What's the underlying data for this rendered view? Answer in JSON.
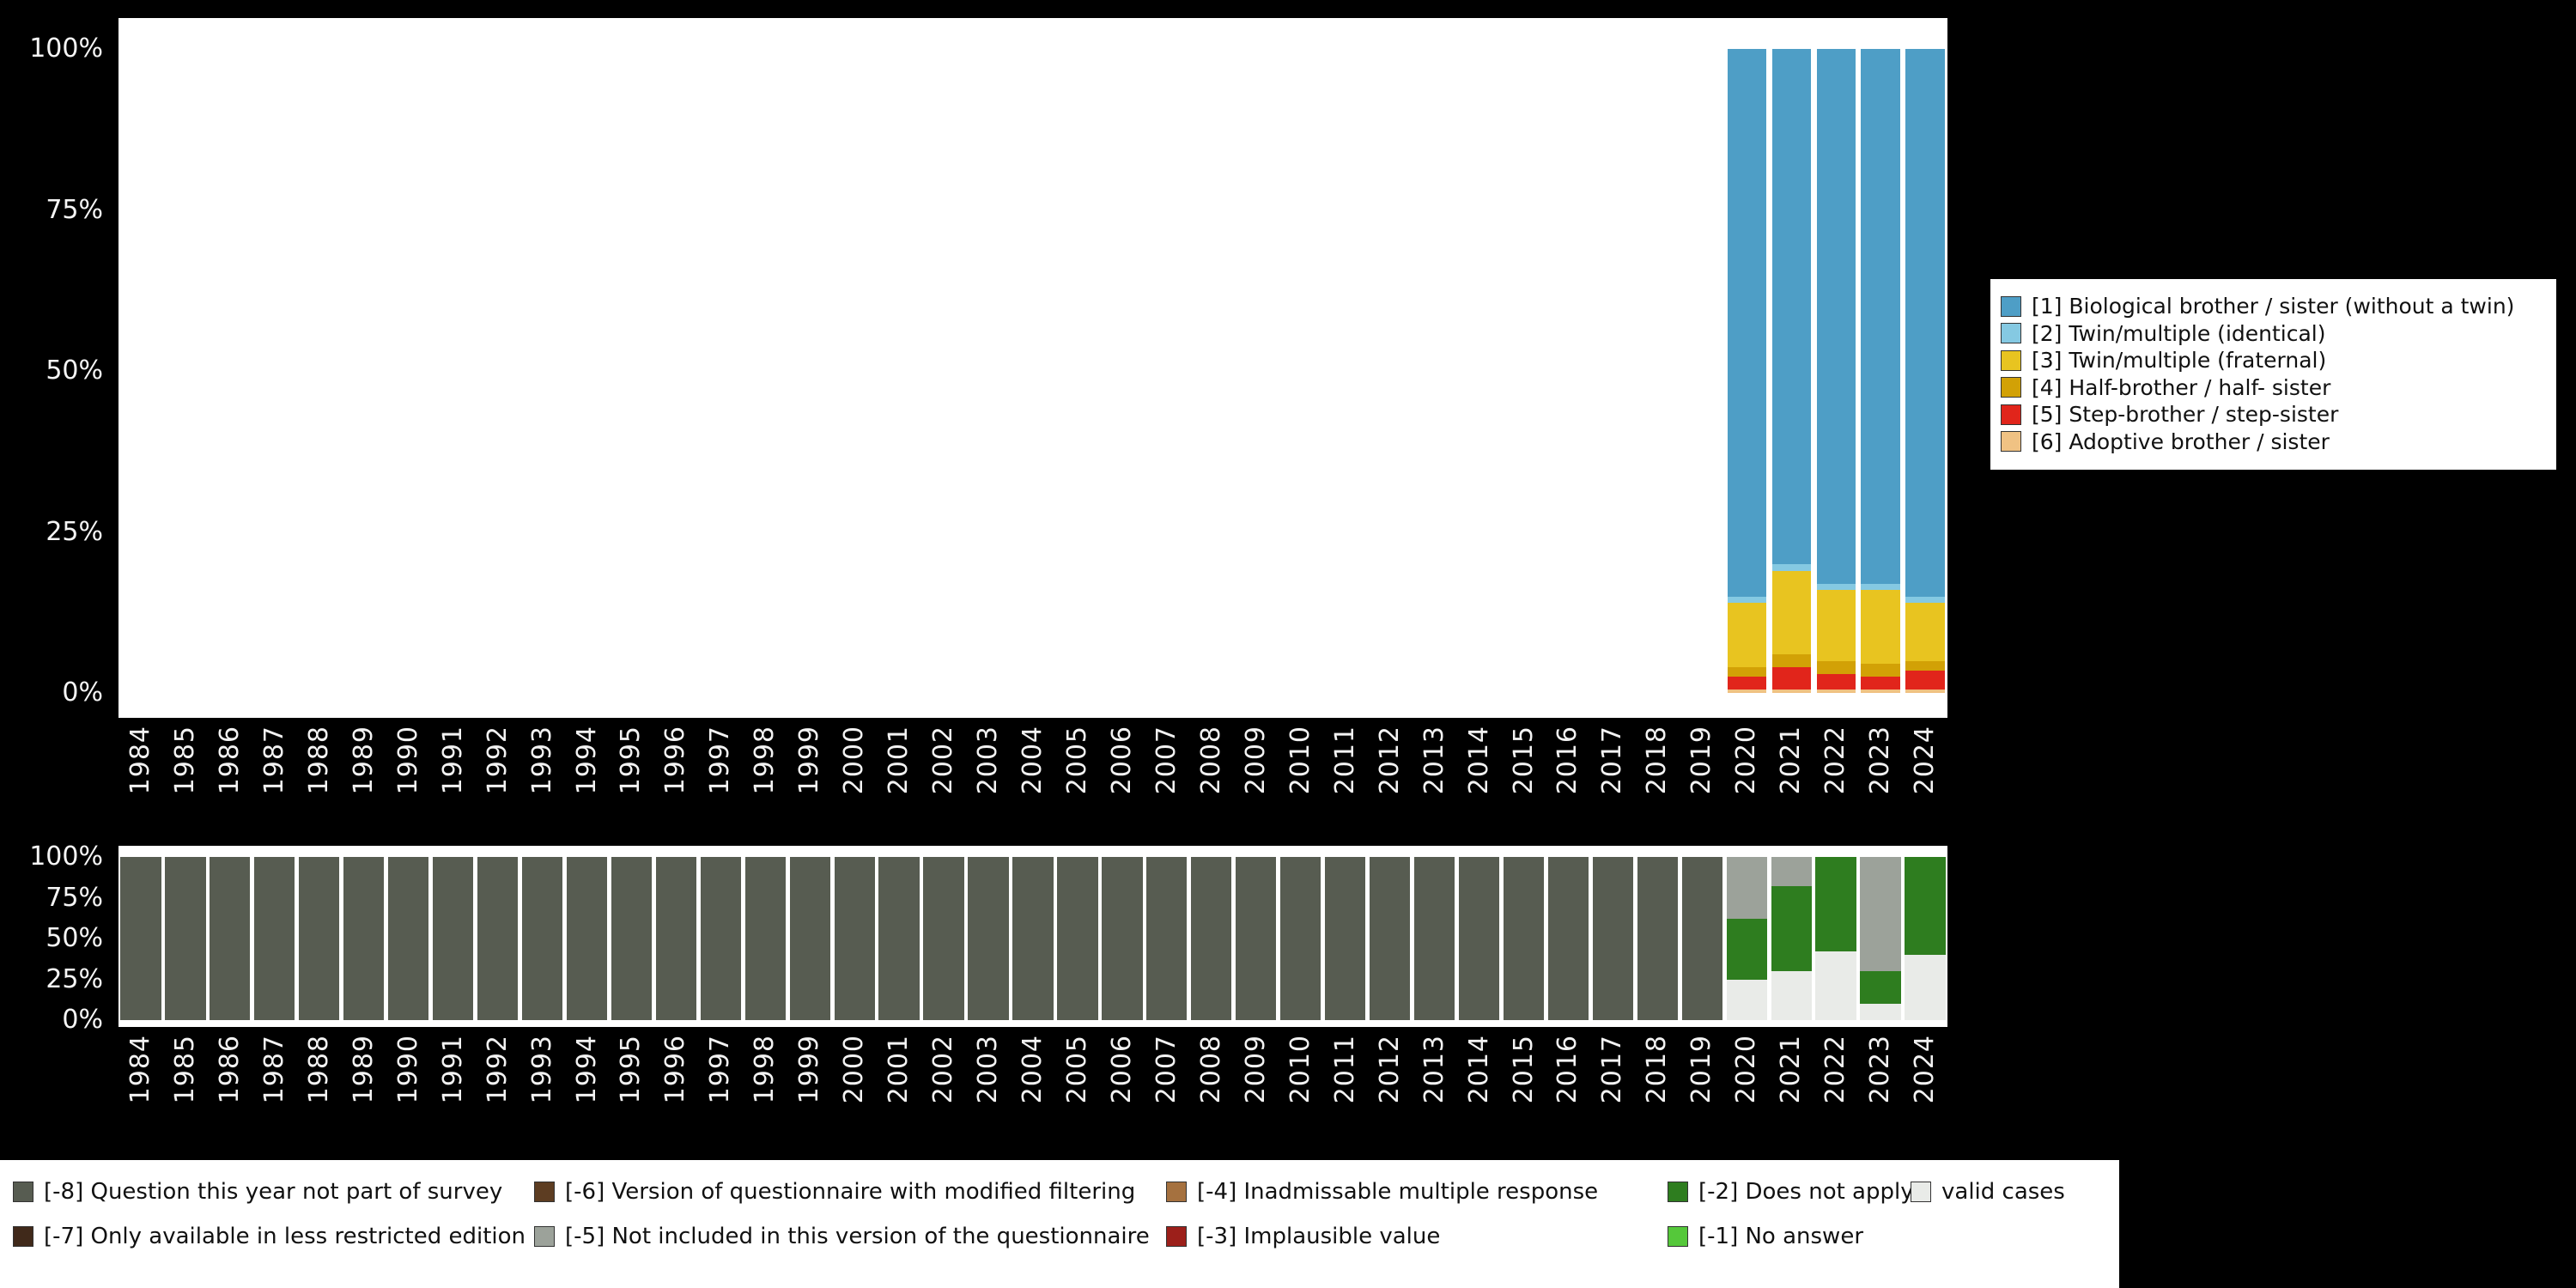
{
  "chart_data": [
    {
      "type": "bar",
      "stacked": true,
      "title": "",
      "xlabel": "",
      "ylabel": "",
      "ylim": [
        0,
        100
      ],
      "grid": false,
      "legend_position": "right",
      "bar_width_pct": 87,
      "y_ticks": [
        {
          "label": "100%",
          "value": 100
        },
        {
          "label": "75%",
          "value": 75
        },
        {
          "label": "50%",
          "value": 50
        },
        {
          "label": "25%",
          "value": 25
        },
        {
          "label": "0%",
          "value": 0
        }
      ],
      "categories": [
        "1984",
        "1985",
        "1986",
        "1987",
        "1988",
        "1989",
        "1990",
        "1991",
        "1992",
        "1993",
        "1994",
        "1995",
        "1996",
        "1997",
        "1998",
        "1999",
        "2000",
        "2001",
        "2002",
        "2003",
        "2004",
        "2005",
        "2006",
        "2007",
        "2008",
        "2009",
        "2010",
        "2011",
        "2012",
        "2013",
        "2014",
        "2015",
        "2016",
        "2017",
        "2018",
        "2019",
        "2020",
        "2021",
        "2022",
        "2023",
        "2024"
      ],
      "stack_order": [
        5,
        4,
        3,
        2,
        1,
        0
      ],
      "series": [
        {
          "name": "[1] Biological brother / sister (without a twin)",
          "color": "#4e9ec6",
          "values_by_year": {
            "2020": 85,
            "2021": 80,
            "2022": 83,
            "2023": 83,
            "2024": 85
          }
        },
        {
          "name": "[2] Twin/multiple (identical)",
          "color": "#85c9e2",
          "values_by_year": {
            "2020": 1,
            "2021": 1,
            "2022": 1,
            "2023": 1,
            "2024": 1
          }
        },
        {
          "name": "[3] Twin/multiple (fraternal)",
          "color": "#e8c420",
          "values_by_year": {
            "2020": 10,
            "2021": 13,
            "2022": 11,
            "2023": 11.5,
            "2024": 9
          }
        },
        {
          "name": "[4] Half-brother / half- sister",
          "color": "#d2a106",
          "values_by_year": {
            "2020": 1.5,
            "2021": 2,
            "2022": 2,
            "2023": 2,
            "2024": 1.5
          }
        },
        {
          "name": "[5] Step-brother / step-sister",
          "color": "#e1251b",
          "values_by_year": {
            "2020": 2,
            "2021": 3.5,
            "2022": 2.5,
            "2023": 2,
            "2024": 3
          }
        },
        {
          "name": "[6] Adoptive brother / sister",
          "color": "#f0c283",
          "values_by_year": {
            "2020": 0.5,
            "2021": 0.5,
            "2022": 0.5,
            "2023": 0.5,
            "2024": 0.5
          }
        }
      ]
    },
    {
      "type": "bar",
      "stacked": true,
      "title": "",
      "xlabel": "",
      "ylabel": "",
      "ylim": [
        0,
        100
      ],
      "grid": false,
      "legend_position": "bottom",
      "bar_width_pct": 91,
      "y_ticks": [
        {
          "label": "100%",
          "value": 100
        },
        {
          "label": "75%",
          "value": 75
        },
        {
          "label": "50%",
          "value": 50
        },
        {
          "label": "25%",
          "value": 25
        },
        {
          "label": "0%",
          "value": 0
        }
      ],
      "categories": [
        "1984",
        "1985",
        "1986",
        "1987",
        "1988",
        "1989",
        "1990",
        "1991",
        "1992",
        "1993",
        "1994",
        "1995",
        "1996",
        "1997",
        "1998",
        "1999",
        "2000",
        "2001",
        "2002",
        "2003",
        "2004",
        "2005",
        "2006",
        "2007",
        "2008",
        "2009",
        "2010",
        "2011",
        "2012",
        "2013",
        "2014",
        "2015",
        "2016",
        "2017",
        "2018",
        "2019",
        "2020",
        "2021",
        "2022",
        "2023",
        "2024"
      ],
      "stack_order": [
        8,
        7,
        6,
        5,
        4,
        3,
        2,
        1,
        0
      ],
      "legend_columns": [
        [
          0,
          1
        ],
        [
          2,
          3
        ],
        [
          4,
          5
        ],
        [
          6,
          7
        ],
        [
          8
        ]
      ],
      "series": [
        {
          "name": "[-8] Question this year not part of survey",
          "color": "#575c51",
          "values_by_year": {
            "1984": 100,
            "1985": 100,
            "1986": 100,
            "1987": 100,
            "1988": 100,
            "1989": 100,
            "1990": 100,
            "1991": 100,
            "1992": 100,
            "1993": 100,
            "1994": 100,
            "1995": 100,
            "1996": 100,
            "1997": 100,
            "1998": 100,
            "1999": 100,
            "2000": 100,
            "2001": 100,
            "2002": 100,
            "2003": 100,
            "2004": 100,
            "2005": 100,
            "2006": 100,
            "2007": 100,
            "2008": 100,
            "2009": 100,
            "2010": 100,
            "2011": 100,
            "2012": 100,
            "2013": 100,
            "2014": 100,
            "2015": 100,
            "2016": 100,
            "2017": 100,
            "2018": 100,
            "2019": 100
          }
        },
        {
          "name": "[-7] Only available in less restricted edition",
          "color": "#40291a",
          "values_by_year": {}
        },
        {
          "name": "[-6] Version of questionnaire with modified filtering",
          "color": "#5d3d22",
          "values_by_year": {}
        },
        {
          "name": "[-5] Not included in this version of the questionnaire",
          "color": "#9ca29a",
          "values_by_year": {
            "2020": 38,
            "2021": 18,
            "2023": 70
          }
        },
        {
          "name": "[-4] Inadmissable multiple response",
          "color": "#a5713f",
          "values_by_year": {}
        },
        {
          "name": "[-3] Implausible value",
          "color": "#9c1f1a",
          "values_by_year": {}
        },
        {
          "name": "[-2] Does not apply",
          "color": "#2e7d1f",
          "values_by_year": {
            "2020": 37,
            "2021": 52,
            "2022": 58,
            "2023": 20,
            "2024": 60
          }
        },
        {
          "name": "[-1] No answer",
          "color": "#55c83a",
          "values_by_year": {}
        },
        {
          "name": "valid cases",
          "color": "#e9ebe8",
          "values_by_year": {
            "2020": 25,
            "2021": 30,
            "2022": 42,
            "2023": 10,
            "2024": 40
          }
        }
      ]
    }
  ]
}
